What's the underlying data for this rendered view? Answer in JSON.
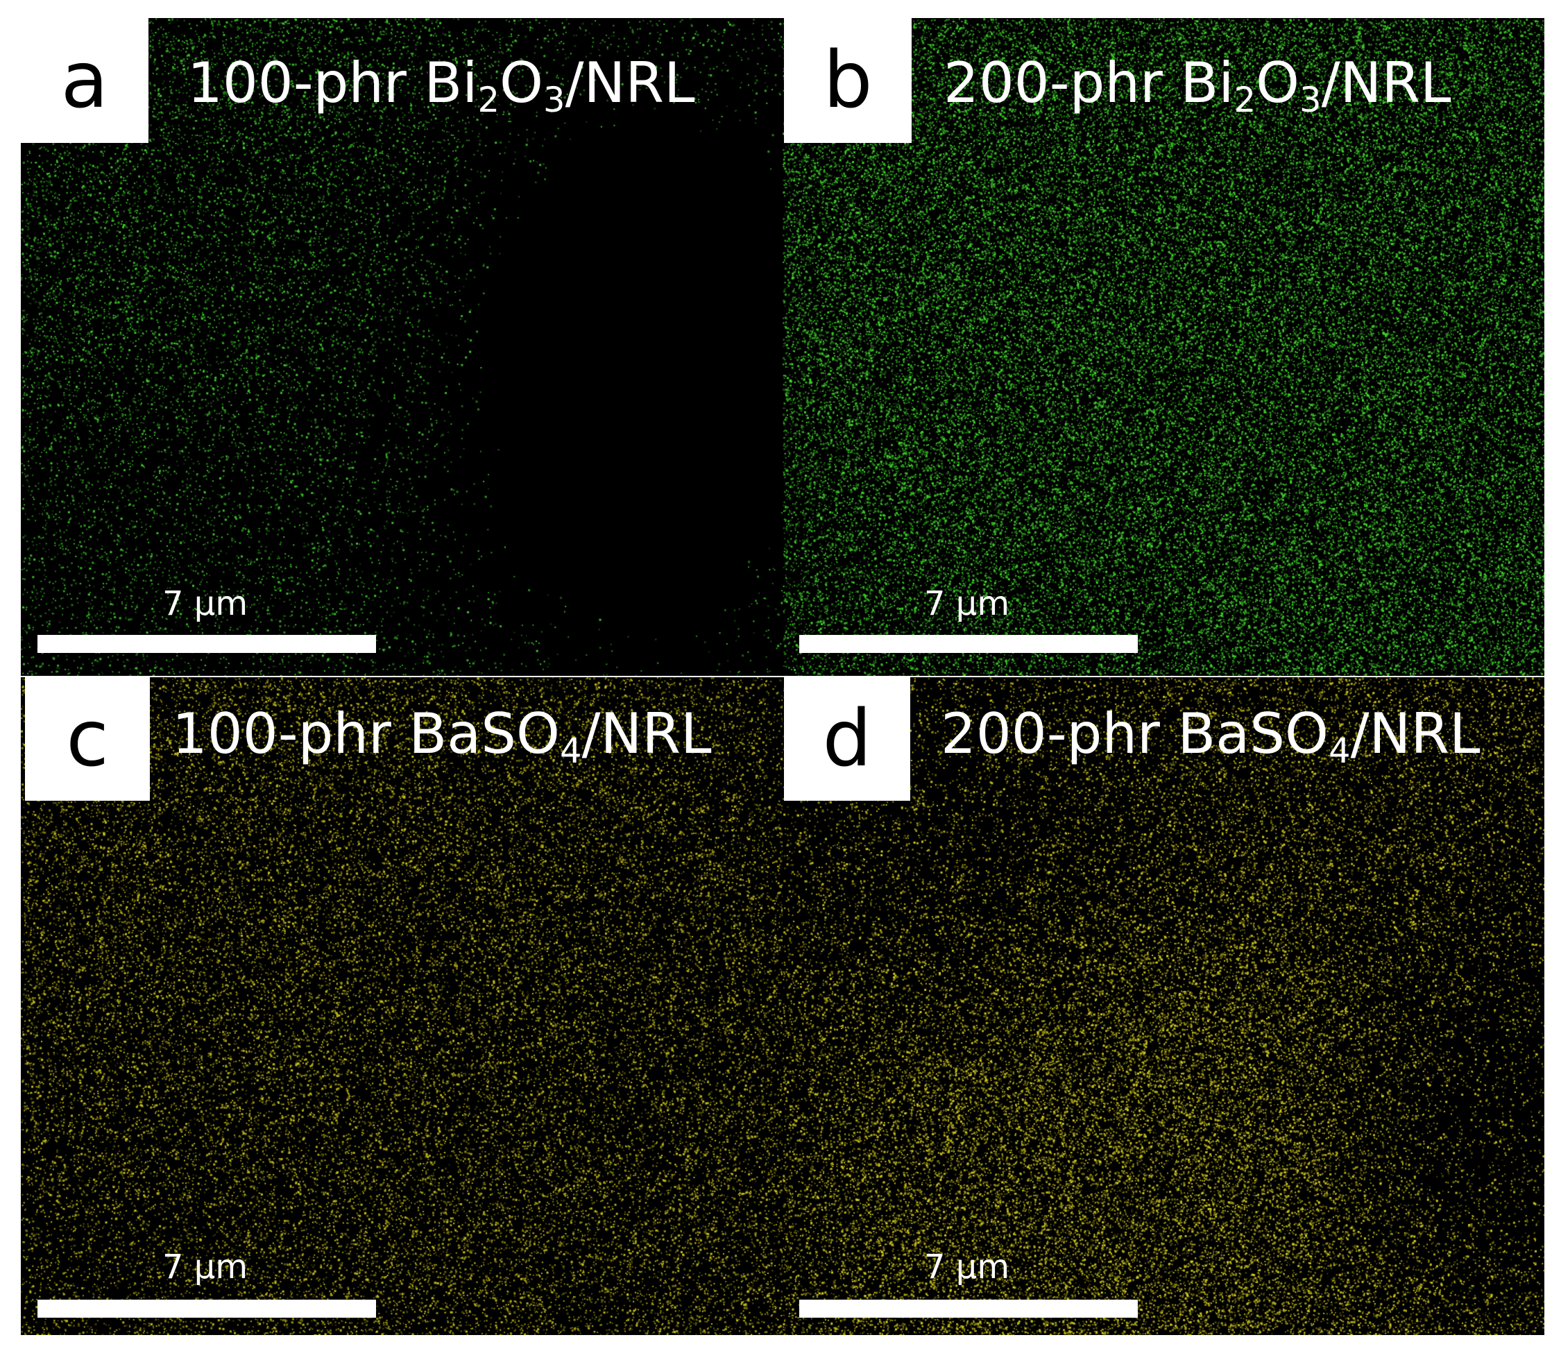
{
  "panels": [
    {
      "letter": "a",
      "title_prefix": "100-phr Bi",
      "title_sub1": "2",
      "title_mid": "O",
      "title_sub2": "3",
      "title_suffix": "/NRL",
      "scale_label": "7 µm",
      "dot_color": "#3fcf2a",
      "density": 0.45
    },
    {
      "letter": "b",
      "title_prefix": "200-phr Bi",
      "title_sub1": "2",
      "title_mid": "O",
      "title_sub2": "3",
      "title_suffix": "/NRL",
      "scale_label": "7 µm",
      "dot_color": "#42d82c",
      "density": 1.0
    },
    {
      "letter": "c",
      "title_prefix": "100-phr BaSO",
      "title_sub1": "4",
      "title_mid": "",
      "title_sub2": "",
      "title_suffix": "/NRL",
      "scale_label": "7 µm",
      "dot_color": "#c9c21a",
      "density": 0.6
    },
    {
      "letter": "d",
      "title_prefix": "200-phr BaSO",
      "title_sub1": "4",
      "title_mid": "",
      "title_sub2": "",
      "title_suffix": "/NRL",
      "scale_label": "7 µm",
      "dot_color": "#d4cc1c",
      "density": 1.0
    }
  ]
}
